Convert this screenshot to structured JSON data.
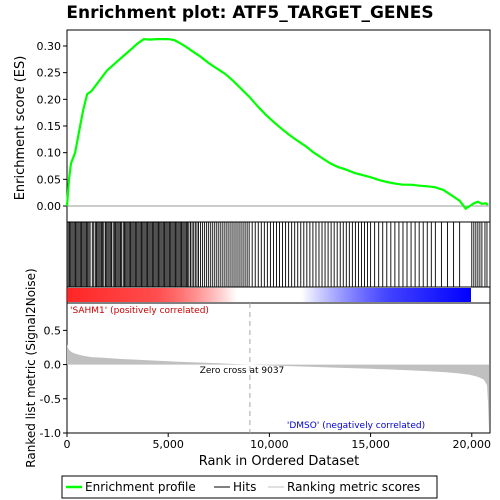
{
  "chart_data": {
    "type": "line",
    "title": "Enrichment plot: ATF5_TARGET_GENES",
    "xlabel": "Rank in Ordered Dataset",
    "ylabel_top": "Enrichment score (ES)",
    "ylabel_bottom": "Ranked list metric (Signal2Noise)",
    "xlim": [
      0,
      20900
    ],
    "x_ticks": [
      0,
      5000,
      10000,
      15000,
      20000
    ],
    "x_tick_labels": [
      "0",
      "5,000",
      "10,000",
      "15,000",
      "20,000"
    ],
    "es_ylim": [
      -0.03,
      0.33
    ],
    "es_ticks": [
      0.0,
      0.05,
      0.1,
      0.15,
      0.2,
      0.25,
      0.3
    ],
    "es_tick_labels": [
      "0.00",
      "0.05",
      "0.10",
      "0.15",
      "0.20",
      "0.25",
      "0.30"
    ],
    "metric_ylim": [
      -1.0,
      0.9
    ],
    "metric_ticks": [
      0.5,
      0.0,
      -0.5,
      -1.0
    ],
    "metric_tick_labels": [
      "0.5",
      "0.0",
      "-0.5",
      "-1.0"
    ],
    "series": [
      {
        "name": "Enrichment profile",
        "color": "#00ff00",
        "x": [
          0,
          100,
          200,
          400,
          600,
          800,
          1000,
          1200,
          1400,
          1600,
          1800,
          2000,
          2300,
          2600,
          2900,
          3200,
          3500,
          3800,
          4100,
          4400,
          4700,
          5000,
          5300,
          5600,
          5900,
          6200,
          6600,
          7000,
          7400,
          7800,
          8200,
          8600,
          9000,
          9400,
          9800,
          10200,
          10600,
          11000,
          11400,
          11800,
          12200,
          12600,
          13000,
          13400,
          13800,
          14200,
          14600,
          15000,
          15400,
          15800,
          16200,
          16600,
          17000,
          17400,
          17800,
          18200,
          18600,
          19000,
          19400,
          19700,
          19900,
          20100,
          20300,
          20500,
          20700,
          20800
        ],
        "y": [
          0.0,
          0.05,
          0.08,
          0.1,
          0.14,
          0.18,
          0.21,
          0.215,
          0.225,
          0.235,
          0.245,
          0.255,
          0.265,
          0.275,
          0.285,
          0.295,
          0.305,
          0.313,
          0.312,
          0.313,
          0.313,
          0.313,
          0.311,
          0.305,
          0.298,
          0.29,
          0.28,
          0.268,
          0.258,
          0.248,
          0.235,
          0.22,
          0.205,
          0.188,
          0.172,
          0.158,
          0.145,
          0.133,
          0.122,
          0.112,
          0.1,
          0.09,
          0.08,
          0.073,
          0.068,
          0.062,
          0.058,
          0.054,
          0.049,
          0.045,
          0.042,
          0.04,
          0.04,
          0.038,
          0.037,
          0.035,
          0.03,
          0.02,
          0.01,
          -0.005,
          0.0,
          0.005,
          0.008,
          0.004,
          0.005,
          0.002
        ]
      }
    ],
    "hits": [
      60,
      120,
      180,
      240,
      300,
      360,
      420,
      480,
      540,
      600,
      660,
      720,
      780,
      840,
      900,
      960,
      1020,
      1080,
      1140,
      1250,
      1320,
      1400,
      1460,
      1520,
      1580,
      1640,
      1700,
      1760,
      1820,
      1900,
      1960,
      2020,
      2080,
      2140,
      2200,
      2280,
      2340,
      2400,
      2460,
      2520,
      2580,
      2640,
      2700,
      2780,
      2840,
      2900,
      2960,
      3020,
      3080,
      3140,
      3200,
      3260,
      3320,
      3380,
      3440,
      3500,
      3560,
      3620,
      3680,
      3740,
      3800,
      3860,
      3920,
      3980,
      4040,
      4100,
      4160,
      4220,
      4280,
      4340,
      4400,
      4460,
      4520,
      4580,
      4640,
      4700,
      4760,
      4820,
      4880,
      4940,
      5000,
      5060,
      5120,
      5180,
      5240,
      5300,
      5360,
      5420,
      5480,
      5540,
      5600,
      5660,
      5720,
      5780,
      5840,
      5900,
      5960,
      6020,
      6100,
      6180,
      6260,
      6340,
      6420,
      6500,
      6600,
      6700,
      6800,
      6900,
      7000,
      7100,
      7200,
      7300,
      7400,
      7500,
      7600,
      7700,
      7800,
      7900,
      8000,
      8100,
      8200,
      8300,
      8400,
      8500,
      8600,
      8700,
      8800,
      8900,
      9000,
      9150,
      9300,
      9450,
      9600,
      9750,
      9900,
      10050,
      10200,
      10350,
      10500,
      10650,
      10800,
      10950,
      11100,
      11250,
      11400,
      11550,
      11700,
      11850,
      12000,
      12150,
      12300,
      12450,
      12600,
      12750,
      12900,
      13050,
      13200,
      13350,
      13500,
      13650,
      13800,
      13950,
      14100,
      14250,
      14400,
      14550,
      14700,
      14850,
      15000,
      15200,
      15400,
      15600,
      15800,
      16000,
      16200,
      16400,
      16600,
      16800,
      17000,
      17200,
      17400,
      17600,
      17800,
      18000,
      18200,
      18500,
      18800,
      19100,
      19400,
      20000,
      20100,
      20200,
      20300,
      20400,
      20500,
      20650,
      20750
    ],
    "metric_curve": {
      "x": [
        0,
        50,
        150,
        300,
        500,
        800,
        1200,
        1800,
        2500,
        3500,
        4500,
        5500,
        6500,
        7500,
        8500,
        9037,
        10000,
        11000,
        12000,
        13000,
        14000,
        15000,
        16000,
        17000,
        18000,
        18800,
        19400,
        19900,
        20300,
        20600,
        20750,
        20800,
        20850
      ],
      "y": [
        0.3,
        0.24,
        0.2,
        0.17,
        0.15,
        0.13,
        0.11,
        0.1,
        0.085,
        0.07,
        0.055,
        0.042,
        0.03,
        0.018,
        0.006,
        0.0,
        -0.012,
        -0.022,
        -0.032,
        -0.042,
        -0.052,
        -0.062,
        -0.072,
        -0.085,
        -0.1,
        -0.115,
        -0.13,
        -0.15,
        -0.18,
        -0.22,
        -0.3,
        -0.55,
        -0.95
      ]
    },
    "zero_cross_x": 9037,
    "zero_cross_label": "Zero cross at 9037",
    "pos_label": "'SAHM1' (positively correlated)",
    "neg_label": "'DMSO' (negatively correlated)",
    "colors": {
      "es_line": "#00ff00",
      "hit": "#000000",
      "metric_fill": "#c0c0c0",
      "pos_text": "#cc0000",
      "neg_text": "#0000cc",
      "ramp_red": "#ff0000",
      "ramp_white": "#ffffff",
      "ramp_blue": "#0000ff"
    },
    "legend": [
      {
        "label": "Enrichment profile",
        "color": "#00ff00",
        "kind": "line-thick"
      },
      {
        "label": "Hits",
        "color": "#000000",
        "kind": "line-thin"
      },
      {
        "label": "Ranking metric scores",
        "color": "#c0c0c0",
        "kind": "line-thin"
      }
    ]
  }
}
